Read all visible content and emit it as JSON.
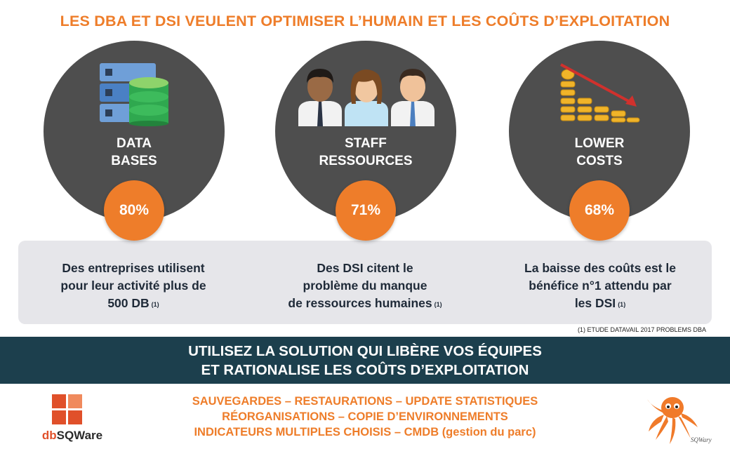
{
  "title": "LES DBA ET DSI VEULENT OPTIMISER L’HUMAIN ET LES COÛTS D’EXPLOITATION",
  "cards": [
    {
      "label_line1": "DATA",
      "label_line2": "BASES",
      "icon": "database-icon",
      "percent": "80%",
      "desc_line1": "Des entreprises utilisent",
      "desc_line2": "pour leur activité plus de",
      "desc_line3": "500 DB",
      "ref": "(1)"
    },
    {
      "label_line1": "STAFF",
      "label_line2": "RESSOURCES",
      "icon": "staff-people-icon",
      "percent": "71%",
      "desc_line1": "Des DSI citent le",
      "desc_line2": "problème du manque",
      "desc_line3": "de ressources humaines",
      "ref": "(1)"
    },
    {
      "label_line1": "LOWER",
      "label_line2": "COSTS",
      "icon": "falling-coins-icon",
      "percent": "68%",
      "desc_line1": "La baisse des coûts est le",
      "desc_line2": "bénéfice n°1 attendu par",
      "desc_line3": "les DSI",
      "ref": "(1)"
    }
  ],
  "footnote": "(1) ETUDE DATAVAIL 2017 PROBLEMS DBA",
  "banner": {
    "line1": "UTILISEZ LA SOLUTION QUI LIBÈRE VOS ÉQUIPES",
    "line2": "ET RATIONALISE LES COÛTS D’EXPLOITATION"
  },
  "features": {
    "line1": "SAUVEGARDES – RESTAURATIONS – UPDATE STATISTIQUES",
    "line2": "RÉORGANISATIONS – COPIE D’ENVIRONNEMENTS",
    "line3": "INDICATEURS MULTIPLES CHOISIS – CMDB (gestion du parc)"
  },
  "logo": {
    "prefix": "db",
    "brand": "SQWare"
  },
  "mascot_signature": "SQWary",
  "colors": {
    "accent_orange": "#ee7d2a",
    "circle_gray": "#4e4e4e",
    "banner_teal": "#1c3f4d",
    "band_gray": "#e6e6ea"
  }
}
